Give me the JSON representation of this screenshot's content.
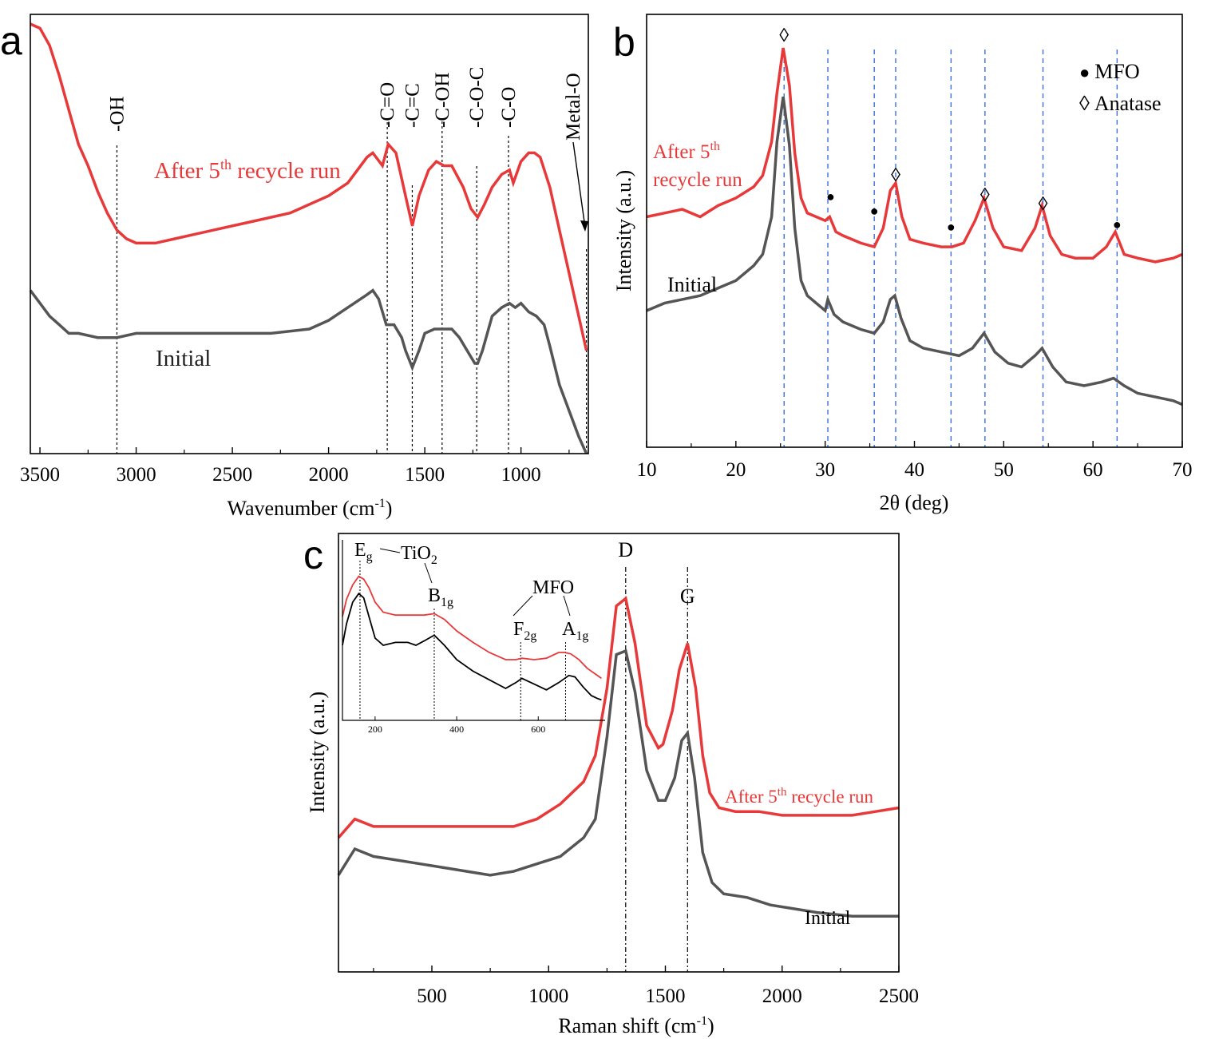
{
  "colors": {
    "initial": "#555555",
    "recycled": "#e8393a",
    "axis": "#000000",
    "guide_blue": "#3b6fe0",
    "guide_black": "#000000"
  },
  "chart_data": [
    {
      "panel_label": "a",
      "type": "line",
      "xlabel": "Wavenumber (cm",
      "xlabel_sup": "-1",
      "xlabel_end": ")",
      "ylabel": "",
      "xlim": [
        3550,
        650
      ],
      "ylim": [
        0,
        100
      ],
      "xticks": [
        3500,
        3000,
        2500,
        2000,
        1500,
        1000
      ],
      "xtick_labels": [
        "3500",
        "3000",
        "2500",
        "2000",
        "1500",
        "1000"
      ],
      "series": [
        {
          "name": "After 5",
          "label_sup": "th",
          "label_end": " recycle run",
          "color_key": "recycled",
          "x": [
            3550,
            3500,
            3450,
            3400,
            3350,
            3300,
            3250,
            3200,
            3150,
            3100,
            3050,
            3000,
            2950,
            2900,
            2800,
            2600,
            2400,
            2200,
            2000,
            1900,
            1800,
            1770,
            1720,
            1690,
            1650,
            1600,
            1565,
            1530,
            1480,
            1440,
            1400,
            1360,
            1300,
            1260,
            1225,
            1190,
            1150,
            1100,
            1060,
            1040,
            1000,
            960,
            930,
            900,
            850,
            800,
            750,
            700,
            660
          ],
          "y": [
            100,
            99,
            95,
            88,
            80,
            72,
            67,
            61,
            56,
            52,
            50,
            49,
            49,
            49,
            50,
            52,
            54,
            56,
            60,
            63,
            69,
            70,
            67,
            72,
            70,
            60,
            53,
            60,
            66,
            68,
            67,
            67,
            62,
            57,
            55,
            58,
            62,
            65,
            66,
            63,
            68,
            70,
            70,
            69,
            62,
            52,
            42,
            32,
            24
          ]
        },
        {
          "name": "Initial",
          "color_key": "initial",
          "x": [
            3550,
            3500,
            3450,
            3400,
            3350,
            3300,
            3200,
            3100,
            3000,
            2950,
            2900,
            2700,
            2500,
            2300,
            2100,
            2000,
            1900,
            1800,
            1770,
            1740,
            1700,
            1660,
            1620,
            1600,
            1565,
            1530,
            1500,
            1450,
            1400,
            1360,
            1320,
            1280,
            1240,
            1225,
            1200,
            1150,
            1100,
            1060,
            1030,
            1000,
            960,
            920,
            880,
            850,
            800,
            750,
            700,
            660
          ],
          "y": [
            38,
            35,
            32,
            30,
            28,
            28,
            27,
            27,
            28,
            28,
            28,
            28,
            28,
            28,
            29,
            31,
            34,
            37,
            38,
            36,
            30,
            30,
            27,
            24,
            20,
            24,
            28,
            29,
            29,
            29,
            27,
            24,
            21,
            21,
            24,
            32,
            34,
            35,
            34,
            35,
            33,
            32,
            30,
            25,
            16,
            10,
            4,
            0
          ]
        }
      ],
      "annotations": [
        {
          "text": "-OH",
          "x": 3100
        },
        {
          "text": "-C=O",
          "x": 1695
        },
        {
          "text": "-C=C",
          "x": 1565
        },
        {
          "text": "-C-OH",
          "x": 1410
        },
        {
          "text": "-C-O-C",
          "x": 1230
        },
        {
          "text": "-C-O",
          "x": 1065
        },
        {
          "text": "Metal-O",
          "x": 660
        }
      ],
      "grid": false
    },
    {
      "panel_label": "b",
      "type": "line",
      "xlabel": "2θ (deg)",
      "ylabel": "Intensity (a.u.)",
      "xlim": [
        10,
        70
      ],
      "ylim": [
        0,
        100
      ],
      "xticks": [
        10,
        20,
        30,
        40,
        50,
        60,
        70
      ],
      "xtick_labels": [
        "10",
        "20",
        "30",
        "40",
        "50",
        "60",
        "70"
      ],
      "series": [
        {
          "name": "After 5",
          "label_sup": "th",
          "label_line2": "recycle run",
          "color_key": "recycled",
          "x": [
            10,
            12,
            14,
            16,
            18,
            20,
            22,
            23,
            24,
            24.6,
            25.3,
            26,
            26.6,
            27.3,
            28,
            29,
            30,
            30.5,
            31.2,
            32,
            34,
            35.5,
            36.5,
            37.3,
            37.9,
            38.6,
            39.5,
            41,
            43,
            44.2,
            45.5,
            46.8,
            47.8,
            48.8,
            50,
            52,
            53.5,
            54.3,
            55.2,
            56.5,
            58,
            60,
            61.5,
            62.5,
            63.5,
            65,
            67,
            69,
            70
          ],
          "y": [
            55,
            56,
            57,
            55,
            58,
            60,
            63,
            66,
            75,
            88,
            100,
            90,
            72,
            60,
            56,
            55,
            54,
            55,
            51,
            50,
            48,
            47,
            52,
            62,
            64,
            55,
            49,
            48,
            47,
            47,
            48,
            54,
            60,
            52,
            47,
            46,
            52,
            58,
            50,
            45,
            44,
            44,
            47,
            51,
            45,
            44,
            43,
            44,
            45
          ]
        },
        {
          "name": "Initial",
          "color_key": "initial",
          "x": [
            10,
            12,
            14,
            16,
            18,
            20,
            22,
            23,
            24,
            24.6,
            25.3,
            26,
            26.6,
            27.3,
            28,
            29,
            30,
            30.3,
            31,
            32,
            34,
            35.5,
            36.5,
            37.3,
            37.8,
            38.5,
            39.5,
            41,
            43,
            45,
            46.5,
            47.8,
            49,
            50.5,
            52,
            53.5,
            54.3,
            55.5,
            57,
            59,
            61,
            62.3,
            63.5,
            65,
            67,
            69,
            70
          ],
          "y": [
            30,
            32,
            33,
            34,
            36,
            38,
            42,
            45,
            55,
            75,
            87,
            74,
            52,
            38,
            34,
            32,
            30,
            33,
            29,
            27,
            25,
            24,
            27,
            33,
            34,
            28,
            22,
            20,
            19,
            18,
            20,
            24,
            19,
            16,
            15,
            18,
            20,
            15,
            11,
            10,
            11,
            12,
            10,
            8,
            7,
            6,
            5
          ]
        }
      ],
      "guides_x": [
        25.4,
        30.3,
        35.5,
        37.9,
        44.1,
        47.9,
        54.4,
        62.7
      ],
      "markers": [
        {
          "symbol": "◊",
          "x": 25.4
        },
        {
          "symbol": "●",
          "x": 30.6
        },
        {
          "symbol": "●",
          "x": 35.5
        },
        {
          "symbol": "◊",
          "x": 37.9
        },
        {
          "symbol": "●",
          "x": 44.1
        },
        {
          "symbol": "◊",
          "x": 47.9
        },
        {
          "symbol": "◊",
          "x": 54.4
        },
        {
          "symbol": "●",
          "x": 62.7
        }
      ],
      "legend": [
        {
          "symbol": "●",
          "label": "MFO"
        },
        {
          "symbol": "◊",
          "label": "Anatase"
        }
      ],
      "legend_position": "top-right",
      "grid": false
    },
    {
      "panel_label": "c",
      "type": "line",
      "xlabel": "Raman shift (cm",
      "xlabel_sup": "-1",
      "xlabel_end": ")",
      "ylabel": "Intensity (a.u.)",
      "xlim": [
        100,
        2500
      ],
      "ylim": [
        0,
        100
      ],
      "xticks": [
        500,
        1000,
        1500,
        2000,
        2500
      ],
      "xtick_labels": [
        "500",
        "1000",
        "1500",
        "2000",
        "2500"
      ],
      "series": [
        {
          "name": "After 5",
          "label_sup": "th",
          "label_end": " recycle run",
          "color_key": "recycled",
          "x": [
            100,
            170,
            250,
            350,
            450,
            550,
            650,
            750,
            850,
            950,
            1050,
            1150,
            1200,
            1250,
            1290,
            1330,
            1370,
            1420,
            1470,
            1490,
            1530,
            1560,
            1595,
            1630,
            1660,
            1690,
            1730,
            1800,
            1900,
            2000,
            2100,
            2200,
            2300,
            2400,
            2500
          ],
          "y": [
            28,
            33,
            31,
            31,
            31,
            31,
            31,
            31,
            31,
            33,
            37,
            43,
            50,
            68,
            90,
            92,
            80,
            58,
            52,
            53,
            62,
            73,
            80,
            68,
            50,
            40,
            36,
            35,
            35,
            34,
            34,
            34,
            34,
            35,
            36
          ]
        },
        {
          "name": "Initial",
          "color_key": "initial",
          "x": [
            100,
            170,
            250,
            350,
            450,
            550,
            650,
            750,
            850,
            950,
            1050,
            1150,
            1200,
            1250,
            1290,
            1330,
            1370,
            1420,
            1470,
            1500,
            1540,
            1570,
            1595,
            1625,
            1660,
            1700,
            1750,
            1850,
            1950,
            2050,
            2150,
            2300,
            2400,
            2500
          ],
          "y": [
            18,
            25,
            23,
            22,
            21,
            20,
            19,
            18,
            19,
            21,
            23,
            28,
            33,
            55,
            77,
            78,
            67,
            46,
            38,
            38,
            44,
            54,
            56,
            44,
            24,
            16,
            13,
            12,
            10,
            9,
            8,
            7,
            7,
            7
          ]
        }
      ],
      "annotations": [
        {
          "text": "D",
          "x": 1330
        },
        {
          "text": "G",
          "x": 1595
        }
      ],
      "inset": {
        "xlim": [
          120,
          760
        ],
        "ylim": [
          0,
          100
        ],
        "xticks": [
          200,
          400,
          600
        ],
        "xtick_labels": [
          "200",
          "400",
          "600"
        ],
        "series": [
          {
            "color_key": "recycled",
            "x": [
              120,
              130,
              145,
              160,
              172,
              185,
              200,
              220,
              250,
              290,
              320,
              345,
              370,
              400,
              440,
              480,
              520,
              545,
              560,
              590,
              620,
              650,
              665,
              680,
              700,
              720,
              740,
              755
            ],
            "y": [
              60,
              72,
              82,
              88,
              86,
              80,
              70,
              63,
              61,
              61,
              61,
              62,
              58,
              50,
              42,
              35,
              30,
              30,
              31,
              30,
              31,
              35,
              35,
              34,
              30,
              24,
              20,
              17
            ]
          },
          {
            "color_key": "guide_black",
            "x": [
              120,
              130,
              145,
              160,
              172,
              185,
              200,
              220,
              250,
              280,
              300,
              320,
              345,
              370,
              400,
              440,
              480,
              520,
              545,
              560,
              590,
              620,
              650,
              675,
              690,
              710,
              730,
              745,
              755
            ],
            "y": [
              40,
              55,
              70,
              76,
              73,
              60,
              45,
              40,
              42,
              42,
              40,
              43,
              47,
              40,
              30,
              22,
              16,
              10,
              14,
              17,
              13,
              9,
              14,
              19,
              18,
              11,
              5,
              3,
              2
            ]
          }
        ],
        "guides_x": [
          163,
          345,
          557,
          667
        ],
        "labels": [
          {
            "text": "E",
            "sub": "g"
          },
          {
            "text": "TiO",
            "sub": "2"
          },
          {
            "text": "B",
            "sub": "1g"
          },
          {
            "text": "MFO",
            "sub": ""
          },
          {
            "text": "F",
            "sub": "2g"
          },
          {
            "text": "A",
            "sub": "1g"
          }
        ]
      },
      "grid": false
    }
  ]
}
